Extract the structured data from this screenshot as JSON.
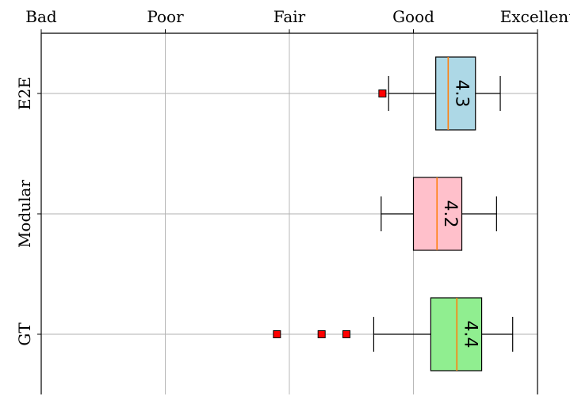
{
  "chart_data": {
    "type": "box",
    "orientation": "horizontal",
    "x_ticks": [
      {
        "value": 1,
        "label": "Bad"
      },
      {
        "value": 2,
        "label": "Poor"
      },
      {
        "value": 3,
        "label": "Fair"
      },
      {
        "value": 4,
        "label": "Good"
      },
      {
        "value": 5,
        "label": "Excellent"
      }
    ],
    "x_axis_position": "top",
    "xlim": [
      1,
      5
    ],
    "grid": true,
    "series": [
      {
        "name": "E2E",
        "whisker_low": 3.8,
        "q1": 4.18,
        "median": 4.28,
        "q3": 4.5,
        "whisker_high": 4.7,
        "outliers": [
          3.75
        ],
        "median_label": "4.3",
        "color": "#add8e6"
      },
      {
        "name": "Modular",
        "whisker_low": 3.74,
        "q1": 4.0,
        "median": 4.19,
        "q3": 4.39,
        "whisker_high": 4.67,
        "outliers": [],
        "median_label": "4.2",
        "color": "#ffc0cb"
      },
      {
        "name": "GT",
        "whisker_low": 3.68,
        "q1": 4.14,
        "median": 4.35,
        "q3": 4.55,
        "whisker_high": 4.8,
        "outliers": [
          2.9,
          3.26,
          3.46
        ],
        "median_label": "4.4",
        "color": "#90ee90"
      }
    ],
    "median_line_color": "#ff7f0e",
    "outlier_color": "#ff0000"
  }
}
